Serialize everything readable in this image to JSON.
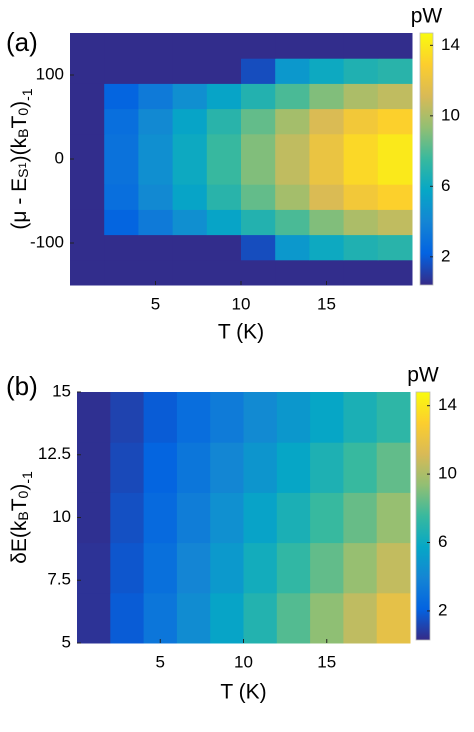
{
  "chart_data": [
    {
      "type": "heatmap",
      "panel_label": "(a)",
      "xlabel": "T (K)",
      "ylabel": [
        {
          "text": "(μ - E"
        },
        {
          "text": "S",
          "shift": "sub"
        },
        {
          "text": "1",
          "shift": "subsub"
        },
        {
          "text": ")(k"
        },
        {
          "text": "B",
          "shift": "sub"
        },
        {
          "text": "T"
        },
        {
          "text": "0",
          "shift": "sub"
        },
        {
          "text": ")"
        },
        {
          "text": "-1",
          "shift": "super"
        }
      ],
      "x": [
        1,
        3,
        5,
        7,
        9,
        11,
        13,
        15,
        17,
        19
      ],
      "y": [
        -135,
        -105,
        -75,
        -45,
        -15,
        15,
        45,
        75,
        105,
        135
      ],
      "z": [
        [
          0.5,
          0.5,
          0.5,
          0.5,
          0.5,
          0.5,
          0.5,
          0.5,
          0.5,
          0.5
        ],
        [
          0.5,
          0.5,
          0.5,
          0.5,
          0.5,
          1.5,
          5,
          6,
          6.7,
          7
        ],
        [
          0.5,
          2.3,
          3.4,
          4.5,
          5.6,
          6.8,
          7.9,
          9,
          10,
          10.5
        ],
        [
          0.5,
          2.8,
          4.2,
          5.6,
          7,
          8.4,
          9.8,
          11.2,
          12.4,
          13
        ],
        [
          0.5,
          3,
          4.5,
          6,
          7.5,
          9,
          10.5,
          12,
          13.3,
          14
        ],
        [
          0.5,
          3,
          4.5,
          6,
          7.5,
          9,
          10.5,
          12,
          13.3,
          14
        ],
        [
          0.5,
          2.8,
          4.2,
          5.6,
          7,
          8.4,
          9.8,
          11.2,
          12.4,
          13
        ],
        [
          0.5,
          2.3,
          3.4,
          4.5,
          5.6,
          6.8,
          7.9,
          9,
          10,
          10.5
        ],
        [
          0.5,
          0.5,
          0.5,
          0.5,
          0.5,
          1.5,
          5,
          6,
          6.7,
          7
        ],
        [
          0.5,
          0.5,
          0.5,
          0.5,
          0.5,
          0.5,
          0.5,
          0.5,
          0.5,
          0.5
        ]
      ],
      "xlim": [
        0,
        20
      ],
      "ylim": [
        -150,
        150
      ],
      "xticks": [
        5,
        10,
        15
      ],
      "yticks": [
        -100,
        0,
        100
      ],
      "colorbar": {
        "label": "pW",
        "clim": [
          0.4,
          14.7
        ],
        "ticks": [
          2,
          6,
          10,
          14
        ]
      }
    },
    {
      "type": "heatmap",
      "panel_label": "(b)",
      "xlabel": "T (K)",
      "ylabel": [
        {
          "text": "δE(k"
        },
        {
          "text": "B",
          "shift": "sub"
        },
        {
          "text": "T"
        },
        {
          "text": "0",
          "shift": "sub"
        },
        {
          "text": ")"
        },
        {
          "text": "-1",
          "shift": "super"
        }
      ],
      "x": [
        1,
        3,
        5,
        7,
        9,
        11,
        13,
        15,
        17,
        19
      ],
      "y": [
        6,
        8,
        10,
        12,
        14
      ],
      "z": [
        [
          0.6,
          1.9,
          3.1,
          4.3,
          5.6,
          6.8,
          8.1,
          9.3,
          10.5,
          11.8
        ],
        [
          0.6,
          1.7,
          2.8,
          3.9,
          5.0,
          6.2,
          7.3,
          8.4,
          9.5,
          10.6
        ],
        [
          0.5,
          1.5,
          2.5,
          3.5,
          4.5,
          5.5,
          6.5,
          7.5,
          8.5,
          9.5
        ],
        [
          0.5,
          1.3,
          2.2,
          3.1,
          4.0,
          4.8,
          5.7,
          6.6,
          7.5,
          8.4
        ],
        [
          0.5,
          1.1,
          1.9,
          2.7,
          3.4,
          4.2,
          4.9,
          5.7,
          6.5,
          7.2
        ]
      ],
      "xlim": [
        0,
        20
      ],
      "ylim": [
        5,
        15
      ],
      "xticks": [
        5,
        10,
        15
      ],
      "yticks": [
        5,
        {
          "value": 7.5,
          "label": "7.5"
        },
        10,
        {
          "value": 12.5,
          "label": "12.5"
        },
        15
      ],
      "colorbar": {
        "label": "pW",
        "clim": [
          0.3,
          14.8
        ],
        "ticks": [
          2,
          6,
          10,
          14
        ]
      }
    }
  ]
}
